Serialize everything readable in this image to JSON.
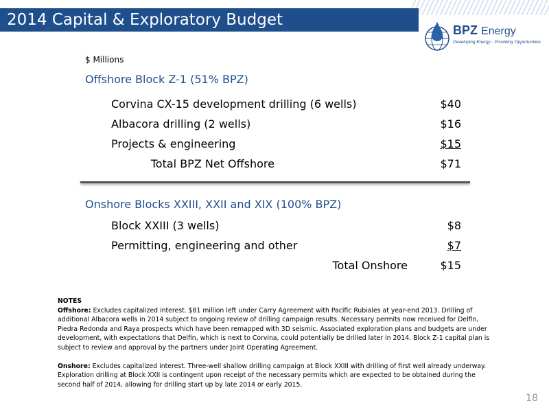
{
  "header": {
    "title": "2014 Capital & Exploratory Budget"
  },
  "logo": {
    "name": "BPZ",
    "name_suffix": "Energy",
    "tagline": "Developing Energy - Providing Opportunities",
    "icon": "oil-drop-globe-icon"
  },
  "units": "$ Millions",
  "offshore": {
    "heading": "Offshore Block Z-1 (51% BPZ)",
    "rows": [
      {
        "label": "Corvina CX-15 development drilling (6 wells)",
        "amount": "$40"
      },
      {
        "label": "Albacora drilling (2 wells)",
        "amount": "$16"
      },
      {
        "label": "Projects & engineering",
        "amount": "$15"
      }
    ],
    "total_label": "Total BPZ Net Offshore",
    "total_amount": "$71"
  },
  "onshore": {
    "heading": "Onshore Blocks XXIII, XXII and XIX (100% BPZ)",
    "rows": [
      {
        "label": "Block XXIII (3 wells)",
        "amount": "$8"
      },
      {
        "label": "Permitting, engineering and other",
        "amount": "$7"
      }
    ],
    "total_label": "Total Onshore",
    "total_amount": "$15"
  },
  "notes": {
    "heading": "NOTES",
    "offshore_label": "Offshore:",
    "offshore_text": "Excludes capitalized interest. $81 million left under Carry Agreement with Pacific Rubiales at year-end 2013. Drilling of additional Albacora wells in 2014 subject to ongoing review of drilling campaign results.  Necessary permits now received for Delfin, Piedra Redonda and Raya prospects which have been remapped with 3D seismic.  Associated exploration plans and budgets are under development, with expectations that Delfin, which is next to Corvina, could potentially be drilled later in 2014.  Block Z-1 capital plan is subject to review and approval by the partners under Joint Operating Agreement.",
    "onshore_label": "Onshore:",
    "onshore_text": "Excludes capitalized interest. Three-well shallow drilling campaign at Block XXIII with drilling of first well already underway. Exploration drilling at Block XXII is contingent upon receipt of the necessary permits which are expected to be obtained during the second half of 2014, allowing for drilling start up by late 2014 or early 2015."
  },
  "page_number": "18",
  "colors": {
    "title_bar": "#1f4e8c",
    "heading_text": "#1f4e8c"
  }
}
